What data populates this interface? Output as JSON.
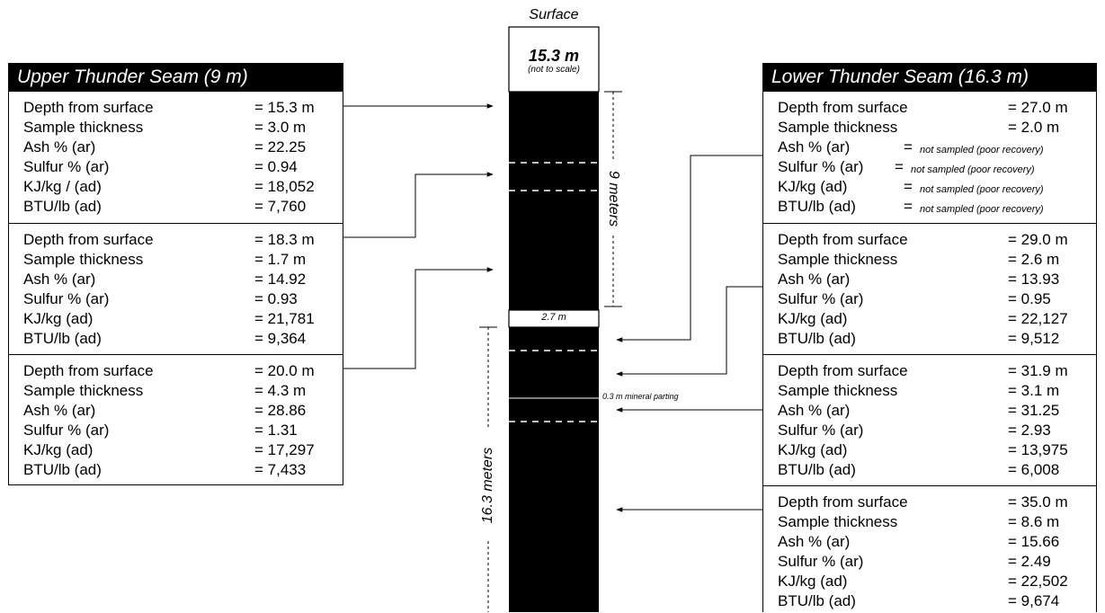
{
  "surface_label": "Surface",
  "surface_box": {
    "depth": "15.3 m",
    "note": "(not to scale)"
  },
  "gap_label": "2.7 m",
  "upper_span": "9 meters",
  "lower_span": "16.3 meters",
  "parting_label": "0.3 m mineral parting",
  "upper": {
    "title": "Upper Thunder Seam (9 m)",
    "samples": [
      {
        "rows": [
          {
            "label": "Depth from surface",
            "value": "= 15.3 m"
          },
          {
            "label": "Sample thickness",
            "value": "= 3.0 m"
          },
          {
            "label": "Ash % (ar)",
            "value": "= 22.25"
          },
          {
            "label": "Sulfur % (ar)",
            "value": "= 0.94"
          },
          {
            "label": "KJ/kg / (ad)",
            "value": "= 18,052"
          },
          {
            "label": "BTU/lb (ad)",
            "value": "= 7,760"
          }
        ]
      },
      {
        "rows": [
          {
            "label": "Depth from surface",
            "value": "= 18.3 m"
          },
          {
            "label": "Sample thickness",
            "value": "= 1.7 m"
          },
          {
            "label": "Ash % (ar)",
            "value": "= 14.92"
          },
          {
            "label": "Sulfur % (ar)",
            "value": "= 0.93"
          },
          {
            "label": "KJ/kg (ad)",
            "value": "= 21,781"
          },
          {
            "label": "BTU/lb (ad)",
            "value": "= 9,364"
          }
        ]
      },
      {
        "rows": [
          {
            "label": "Depth from surface",
            "value": "= 20.0 m"
          },
          {
            "label": "Sample thickness",
            "value": "= 4.3 m"
          },
          {
            "label": "Ash % (ar)",
            "value": "= 28.86"
          },
          {
            "label": "Sulfur % (ar)",
            "value": "= 1.31"
          },
          {
            "label": "KJ/kg (ad)",
            "value": "= 17,297"
          },
          {
            "label": "BTU/lb (ad)",
            "value": "= 7,433"
          }
        ]
      }
    ]
  },
  "lower": {
    "title": "Lower Thunder Seam (16.3 m)",
    "samples": [
      {
        "rows": [
          {
            "label": "Depth from surface",
            "value": "= 27.0 m"
          },
          {
            "label": "Sample thickness",
            "value": "= 2.0 m"
          },
          {
            "label": "Ash % (ar)",
            "eq": "=",
            "value": "not sampled (poor recovery)",
            "small": true
          },
          {
            "label": "Sulfur % (ar)",
            "eq": "=",
            "value": "not sampled (poor recovery)",
            "small": true
          },
          {
            "label": "KJ/kg (ad)",
            "eq": "=",
            "value": "not sampled (poor recovery)",
            "small": true
          },
          {
            "label": "BTU/lb (ad)",
            "eq": "=",
            "value": "not sampled (poor recovery)",
            "small": true
          }
        ]
      },
      {
        "rows": [
          {
            "label": "Depth from surface",
            "value": "= 29.0 m"
          },
          {
            "label": "Sample thickness",
            "value": "= 2.6 m"
          },
          {
            "label": "Ash % (ar)",
            "value": "= 13.93"
          },
          {
            "label": "Sulfur % (ar)",
            "value": "= 0.95"
          },
          {
            "label": "KJ/kg (ad)",
            "value": "= 22,127"
          },
          {
            "label": "BTU/lb (ad)",
            "value": "= 9,512"
          }
        ]
      },
      {
        "rows": [
          {
            "label": "Depth from surface",
            "value": "= 31.9 m"
          },
          {
            "label": "Sample thickness",
            "value": "= 3.1 m"
          },
          {
            "label": "Ash % (ar)",
            "value": "= 31.25"
          },
          {
            "label": "Sulfur % (ar)",
            "value": "= 2.93"
          },
          {
            "label": "KJ/kg (ad)",
            "value": "= 13,975"
          },
          {
            "label": "BTU/lb (ad)",
            "value": "= 6,008"
          }
        ]
      },
      {
        "rows": [
          {
            "label": "Depth from surface",
            "value": "= 35.0 m"
          },
          {
            "label": "Sample thickness",
            "value": "= 8.6 m"
          },
          {
            "label": "Ash % (ar)",
            "value": "= 15.66"
          },
          {
            "label": "Sulfur % (ar)",
            "value": "= 2.49"
          },
          {
            "label": "KJ/kg (ad)",
            "value": "= 22,502"
          },
          {
            "label": "BTU/lb (ad)",
            "value": "= 9,674"
          }
        ]
      }
    ]
  }
}
